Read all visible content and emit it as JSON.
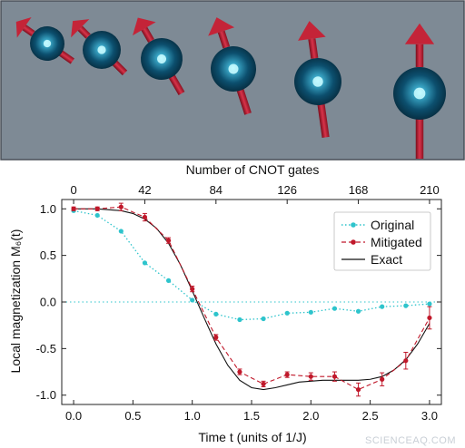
{
  "watermark": "SCIENCEAQ.COM",
  "chart_data": {
    "type": "line",
    "title": "",
    "xlabel": "Time t (units of 1/J)",
    "ylabel": "Local magnetization M₆(t)",
    "top_xlabel": "Number of CNOT gates",
    "xlim": [
      -0.1,
      3.1
    ],
    "ylim": [
      -1.1,
      1.1
    ],
    "xticks": [
      "0.0",
      "0.5",
      "1.0",
      "1.5",
      "2.0",
      "2.5",
      "3.0"
    ],
    "xtick_values": [
      0,
      0.5,
      1.0,
      1.5,
      2.0,
      2.5,
      3.0
    ],
    "yticks": [
      "1.0",
      "0.5",
      "0.0",
      "-0.5",
      "-1.0"
    ],
    "ytick_values": [
      1.0,
      0.5,
      0.0,
      -0.5,
      -1.0
    ],
    "top_xticks": [
      "0",
      "42",
      "84",
      "126",
      "168",
      "210"
    ],
    "top_xtick_values": [
      0,
      0.6,
      1.2,
      1.8,
      2.4,
      3.0
    ],
    "reference_line_y": 0.0,
    "legend_position": "top-right",
    "colors": {
      "original": "#2ec4cc",
      "mitigated": "#c0182a",
      "exact": "#111111",
      "reference": "#2ec4cc"
    },
    "series": [
      {
        "name": "Original",
        "style": "dotted-markers",
        "x": [
          0.0,
          0.2,
          0.4,
          0.6,
          0.8,
          1.0,
          1.2,
          1.4,
          1.6,
          1.8,
          2.0,
          2.2,
          2.4,
          2.6,
          2.8,
          3.0
        ],
        "y": [
          0.98,
          0.93,
          0.76,
          0.42,
          0.23,
          0.02,
          -0.13,
          -0.19,
          -0.18,
          -0.12,
          -0.11,
          -0.07,
          -0.1,
          -0.05,
          -0.04,
          -0.02
        ]
      },
      {
        "name": "Mitigated",
        "style": "dashed-markers",
        "x": [
          0.0,
          0.2,
          0.4,
          0.6,
          0.8,
          1.0,
          1.2,
          1.4,
          1.6,
          1.8,
          2.0,
          2.2,
          2.4,
          2.6,
          2.8,
          3.0
        ],
        "y": [
          1.0,
          1.0,
          1.02,
          0.91,
          0.66,
          0.14,
          -0.38,
          -0.75,
          -0.88,
          -0.78,
          -0.8,
          -0.8,
          -0.94,
          -0.83,
          -0.63,
          -0.17
        ],
        "yerr": [
          0.02,
          0.02,
          0.04,
          0.04,
          0.03,
          0.03,
          0.03,
          0.03,
          0.03,
          0.03,
          0.04,
          0.05,
          0.07,
          0.07,
          0.09,
          0.12
        ]
      },
      {
        "name": "Exact",
        "style": "solid",
        "x": [
          0.0,
          0.1,
          0.2,
          0.3,
          0.4,
          0.5,
          0.6,
          0.7,
          0.8,
          0.9,
          1.0,
          1.1,
          1.2,
          1.3,
          1.4,
          1.5,
          1.6,
          1.7,
          1.8,
          1.9,
          2.0,
          2.1,
          2.2,
          2.3,
          2.4,
          2.5,
          2.6,
          2.7,
          2.8,
          2.9,
          3.0
        ],
        "y": [
          1.0,
          1.0,
          1.0,
          0.99,
          0.98,
          0.95,
          0.89,
          0.79,
          0.63,
          0.4,
          0.12,
          -0.17,
          -0.45,
          -0.68,
          -0.84,
          -0.92,
          -0.94,
          -0.92,
          -0.89,
          -0.86,
          -0.85,
          -0.84,
          -0.84,
          -0.84,
          -0.84,
          -0.83,
          -0.8,
          -0.73,
          -0.62,
          -0.45,
          -0.23
        ]
      }
    ]
  }
}
